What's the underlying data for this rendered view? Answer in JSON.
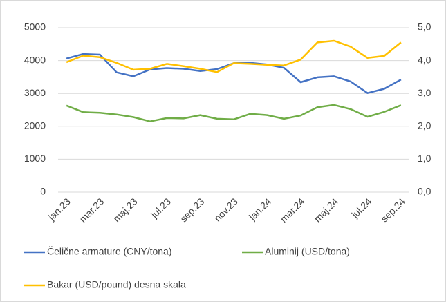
{
  "chart_data": {
    "type": "line",
    "categories": [
      "jan.23",
      null,
      "mar.23",
      null,
      "maj.23",
      null,
      "jul.23",
      null,
      "sep.23",
      null,
      "nov.23",
      null,
      "jan.24",
      null,
      "mar.24",
      null,
      "maj.24",
      null,
      "jul.24",
      null,
      "sep.24"
    ],
    "series": [
      {
        "name": "Čelične armature (CNY/tona)",
        "color": "#4472c4",
        "values": [
          4060,
          4200,
          4180,
          3640,
          3520,
          3730,
          3770,
          3750,
          3680,
          3740,
          3920,
          3930,
          3880,
          3780,
          3340,
          3490,
          3520,
          3360,
          3010,
          3140,
          3420
        ]
      },
      {
        "name": "Aluminij (USD/tona)",
        "color": "#70ad47",
        "values": [
          2630,
          2430,
          2410,
          2360,
          2280,
          2150,
          2250,
          2240,
          2340,
          2230,
          2210,
          2380,
          2340,
          2230,
          2330,
          2580,
          2650,
          2520,
          2290,
          2440,
          2640
        ]
      },
      {
        "name": "Bakar (USD/pound) desna skala",
        "color": "#ffc000",
        "axis": "y2",
        "values": [
          3.95,
          4.15,
          4.1,
          3.93,
          3.72,
          3.75,
          3.9,
          3.83,
          3.75,
          3.65,
          3.92,
          3.9,
          3.87,
          3.85,
          4.03,
          4.55,
          4.6,
          4.42,
          4.08,
          4.14,
          4.55
        ]
      }
    ],
    "ylim": [
      0,
      5000
    ],
    "yticks": [
      0,
      1000,
      2000,
      3000,
      4000,
      5000
    ],
    "y2lim": [
      0,
      5
    ],
    "y2ticks": [
      {
        "value": 0,
        "label": "0,0"
      },
      {
        "value": 1,
        "label": "1,0"
      },
      {
        "value": 2,
        "label": "2,0"
      },
      {
        "value": 3,
        "label": "3,0"
      },
      {
        "value": 4,
        "label": "4,0"
      },
      {
        "value": 5,
        "label": "5,0"
      }
    ],
    "grid": true,
    "legend": "bottom"
  }
}
